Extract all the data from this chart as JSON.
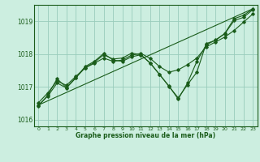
{
  "background_color": "#cceee0",
  "grid_color": "#99ccbb",
  "line_color": "#1a5c1a",
  "text_color": "#1a5c1a",
  "xlabel": "Graphe pression niveau de la mer (hPa)",
  "ylim": [
    1015.8,
    1019.5
  ],
  "xlim": [
    -0.5,
    23.5
  ],
  "yticks": [
    1016,
    1017,
    1018,
    1019
  ],
  "xticks": [
    0,
    1,
    2,
    3,
    4,
    5,
    6,
    7,
    8,
    9,
    10,
    11,
    12,
    13,
    14,
    15,
    16,
    17,
    18,
    19,
    20,
    21,
    22,
    23
  ],
  "s1_x": [
    0,
    1,
    2,
    3,
    4,
    5,
    6,
    7,
    8,
    9,
    10,
    11,
    12,
    13,
    14,
    15,
    16,
    17,
    18,
    19,
    20,
    21,
    22,
    23
  ],
  "s1_y": [
    1016.45,
    1016.72,
    1017.12,
    1016.97,
    1017.27,
    1017.62,
    1017.78,
    1018.02,
    1017.82,
    1017.78,
    1017.92,
    1017.98,
    1017.72,
    1017.38,
    1017.02,
    1016.67,
    1017.07,
    1017.45,
    1018.32,
    1018.42,
    1018.62,
    1019.02,
    1019.12,
    1019.35
  ],
  "s2_x": [
    0,
    1,
    2,
    3,
    4,
    5,
    6,
    7,
    8,
    9,
    10,
    11,
    12,
    13,
    14,
    15,
    16,
    17,
    18,
    19,
    20,
    21,
    22,
    23
  ],
  "s2_y": [
    1016.52,
    1016.82,
    1017.18,
    1017.05,
    1017.32,
    1017.58,
    1017.72,
    1017.88,
    1017.78,
    1017.82,
    1017.97,
    1018.02,
    1017.87,
    1017.62,
    1017.45,
    1017.52,
    1017.68,
    1017.88,
    1018.22,
    1018.37,
    1018.52,
    1018.72,
    1018.97,
    1019.22
  ],
  "s3_x": [
    0,
    1,
    2,
    3,
    4,
    5,
    6,
    7,
    8,
    9,
    10,
    11,
    12,
    13,
    14,
    15,
    16,
    17,
    18,
    19,
    20,
    21,
    22,
    23
  ],
  "s3_y": [
    1016.42,
    1016.75,
    1017.25,
    1016.98,
    1017.28,
    1017.58,
    1017.75,
    1017.98,
    1017.85,
    1017.88,
    1018.03,
    1017.98,
    1017.73,
    1017.38,
    1017.03,
    1016.63,
    1017.12,
    1017.78,
    1018.28,
    1018.43,
    1018.63,
    1019.08,
    1019.18,
    1019.38
  ],
  "trend_x": [
    0,
    23
  ],
  "trend_y": [
    1016.45,
    1019.38
  ]
}
